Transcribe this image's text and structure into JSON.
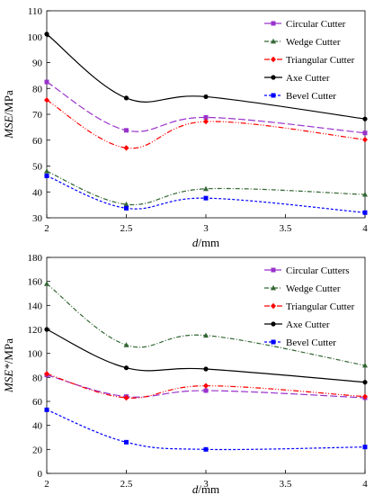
{
  "chart_data": [
    {
      "type": "line",
      "xlabel_italic": "d",
      "xlabel_rest": "/mm",
      "ylabel_italic": "MSE",
      "ylabel_rest": "/MPa",
      "xlim": [
        2,
        4
      ],
      "ylim": [
        30,
        110
      ],
      "xticks": [
        "2",
        "2.5",
        "3",
        "3.5",
        "4"
      ],
      "yticks": [
        "30",
        "40",
        "50",
        "60",
        "70",
        "80",
        "90",
        "100",
        "110"
      ],
      "ytick_values": [
        30,
        40,
        50,
        60,
        70,
        80,
        90,
        100,
        110
      ],
      "xtick_values": [
        2,
        2.5,
        3,
        3.5,
        4
      ],
      "legend_position": "top-right",
      "grid": false,
      "x": [
        2,
        2.5,
        3,
        4
      ],
      "series": [
        {
          "name": "Circular Cutter",
          "values": [
            82.5,
            63.8,
            68.8,
            62.8
          ],
          "color": "#9933cc",
          "dash": "8,3",
          "marker": "square"
        },
        {
          "name": "Wedge Cutter",
          "values": [
            48,
            35.2,
            41.2,
            39
          ],
          "color": "#336633",
          "dash": "5,2,1,2",
          "marker": "triangle"
        },
        {
          "name": "Triangular Cutter",
          "values": [
            75.5,
            57,
            67.2,
            60.2
          ],
          "color": "#ff0000",
          "dash": "6,2,1,2,1,2",
          "marker": "diamond"
        },
        {
          "name": "Axe Cutter",
          "values": [
            101,
            76.3,
            76.8,
            68.2
          ],
          "color": "#000000",
          "dash": "",
          "marker": "circle"
        },
        {
          "name": "Bevel Cutter",
          "values": [
            46.2,
            33.7,
            37.6,
            32
          ],
          "color": "#0000ff",
          "dash": "3,2",
          "marker": "square"
        }
      ]
    },
    {
      "type": "line",
      "xlabel_italic": "d",
      "xlabel_rest": "/mm",
      "ylabel_italic": "MSE*",
      "ylabel_rest": "/MPa",
      "xlim": [
        2,
        4
      ],
      "ylim": [
        0,
        180
      ],
      "xticks": [
        "2",
        "2.5",
        "3",
        "3.5",
        "4"
      ],
      "yticks": [
        "0",
        "20",
        "40",
        "60",
        "80",
        "100",
        "120",
        "140",
        "160",
        "180"
      ],
      "ytick_values": [
        0,
        20,
        40,
        60,
        80,
        100,
        120,
        140,
        160,
        180
      ],
      "xtick_values": [
        2,
        2.5,
        3,
        3.5,
        4
      ],
      "legend_position": "top-right",
      "grid": false,
      "x": [
        2,
        2.5,
        3,
        4
      ],
      "series": [
        {
          "name": "Circular Cutters",
          "values": [
            82,
            64,
            69,
            63
          ],
          "color": "#9933cc",
          "dash": "8,3",
          "marker": "square"
        },
        {
          "name": "Wedge Cutter",
          "values": [
            158,
            107,
            115,
            90
          ],
          "color": "#336633",
          "dash": "5,2,1,2",
          "marker": "triangle"
        },
        {
          "name": "Triangular Cutter",
          "values": [
            83,
            63,
            73,
            64
          ],
          "color": "#ff0000",
          "dash": "6,2,1,2,1,2",
          "marker": "diamond"
        },
        {
          "name": "Axe Cutter",
          "values": [
            120,
            88,
            87,
            76
          ],
          "color": "#000000",
          "dash": "",
          "marker": "circle"
        },
        {
          "name": "Bevel Cutter",
          "values": [
            53,
            26,
            20,
            22
          ],
          "color": "#0000ff",
          "dash": "3,2",
          "marker": "square"
        }
      ]
    }
  ]
}
